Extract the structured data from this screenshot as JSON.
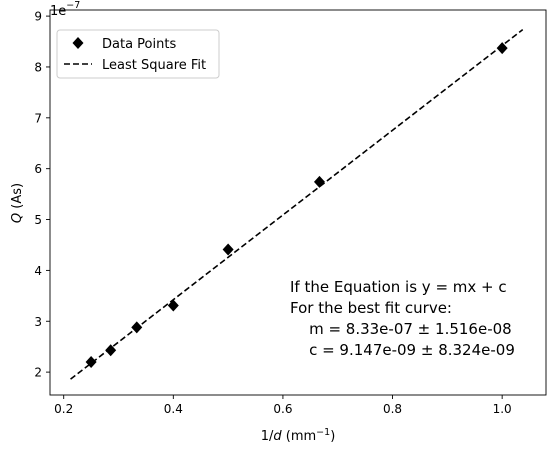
{
  "chart_data": {
    "type": "scatter",
    "xlabel_main": "1/",
    "xlabel_var": "d",
    "xlabel_unit_open": " (mm",
    "xlabel_unit_sup": "−1",
    "xlabel_unit_close": ")",
    "ylabel_var": "Q",
    "ylabel_unit": " (As)",
    "y_offset_base": "1e",
    "y_offset_exp": "−7",
    "xlim": [
      0.175,
      1.08
    ],
    "ylim": [
      1.55,
      9.12
    ],
    "y_scale_note": "values in units of 1e-7 As",
    "x_ticks": [
      0.2,
      0.4,
      0.6,
      0.8,
      1.0
    ],
    "x_tick_labels": [
      "0.2",
      "0.4",
      "0.6",
      "0.8",
      "1.0"
    ],
    "y_ticks": [
      2,
      3,
      4,
      5,
      6,
      7,
      8,
      9
    ],
    "y_tick_labels": [
      "2",
      "3",
      "4",
      "5",
      "6",
      "7",
      "8",
      "9"
    ],
    "grid": false,
    "legend_position": "top-left",
    "series": [
      {
        "name": "Data Points",
        "marker": "diamond",
        "color": "#000000",
        "x": [
          0.25,
          0.2857,
          0.3333,
          0.4,
          0.5,
          0.6667,
          1.0
        ],
        "y": [
          2.2,
          2.43,
          2.88,
          3.31,
          4.41,
          5.74,
          8.37
        ]
      },
      {
        "name": "Least Square Fit",
        "style": "dashed",
        "color": "#000000",
        "x": [
          0.2125,
          1.0375
        ],
        "y": [
          1.862,
          8.734
        ]
      }
    ],
    "annotation": [
      "If the Equation is y = mx + c",
      "For the best fit curve:",
      "    m = 8.33e-07 ± 1.516e-08",
      "    c = 9.147e-09 ± 8.324e-09"
    ]
  }
}
